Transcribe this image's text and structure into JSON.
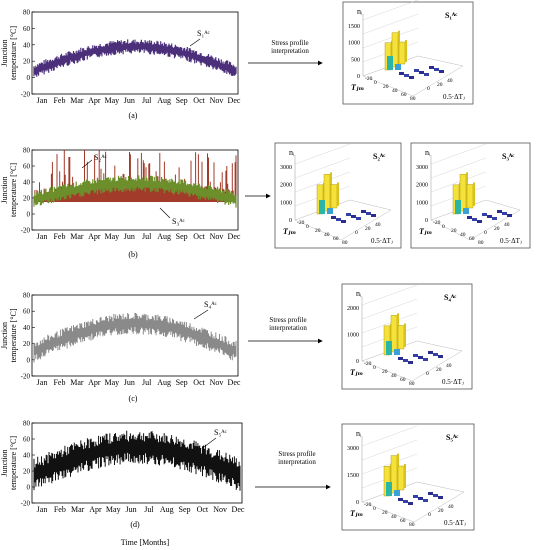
{
  "months": [
    "Jan",
    "Feb",
    "Mar",
    "Apr",
    "May",
    "Jun",
    "Jul",
    "Aug",
    "Sep",
    "Oct",
    "Nov",
    "Dec"
  ],
  "y_ticks": [
    "80",
    "60",
    "40",
    "20",
    "0",
    "-20"
  ],
  "y_ticks_b": [
    "80",
    "60",
    "40",
    "20",
    "0",
    "-20"
  ],
  "y_label_line1": "Junction",
  "y_label_line2": "temperature [°C]",
  "x_label": "Time [Months]",
  "arrow_label_line1": "Stress profile",
  "arrow_label_line2": "interpretation",
  "panels": [
    {
      "letter": "(a)",
      "series_labels": [
        "S₁ᴬᶜ"
      ],
      "color": "#4b2f7a"
    },
    {
      "letter": "(b)",
      "series_labels": [
        "S₂ᴬᶜ",
        "S₃ᴬᶜ"
      ],
      "color": "#6d8f2b",
      "color2": "#a23b2a"
    },
    {
      "letter": "(c)",
      "series_labels": [
        "S₄ᴬᶜ"
      ],
      "color": "#8a8a8a"
    },
    {
      "letter": "(d)",
      "series_labels": [
        "S₅ᴬᶜ"
      ],
      "color": "#111111"
    }
  ],
  "histograms": [
    {
      "title": "S₁ᴬᶜ",
      "z_label": "nᵢ",
      "z_ticks": [
        "1500",
        "1000",
        "500",
        "0"
      ]
    },
    {
      "title": "S₂ᴬᶜ",
      "z_label": "nᵢ",
      "z_ticks": [
        "3000",
        "2000",
        "1000",
        "0"
      ]
    },
    {
      "title": "S₃ᴬᶜ",
      "z_label": "nᵢ",
      "z_ticks": [
        "3000",
        "2000",
        "1000",
        "0"
      ]
    },
    {
      "title": "S₄ᴬᶜ",
      "z_label": "nᵢ",
      "z_ticks": [
        "2000",
        "1000",
        "0"
      ]
    },
    {
      "title": "S₅ᴬᶜ",
      "z_label": "nᵢ",
      "z_ticks": [
        "3000",
        "1500",
        "0"
      ]
    }
  ],
  "hist_axis": {
    "tjm_label": "Tⱼₘ",
    "dt_label": "0.5·ΔTⱼ",
    "tjm_ticks": [
      "-20",
      "0",
      "20",
      "40",
      "60",
      "80"
    ],
    "dt_ticks": [
      "0",
      "20",
      "40"
    ]
  }
}
